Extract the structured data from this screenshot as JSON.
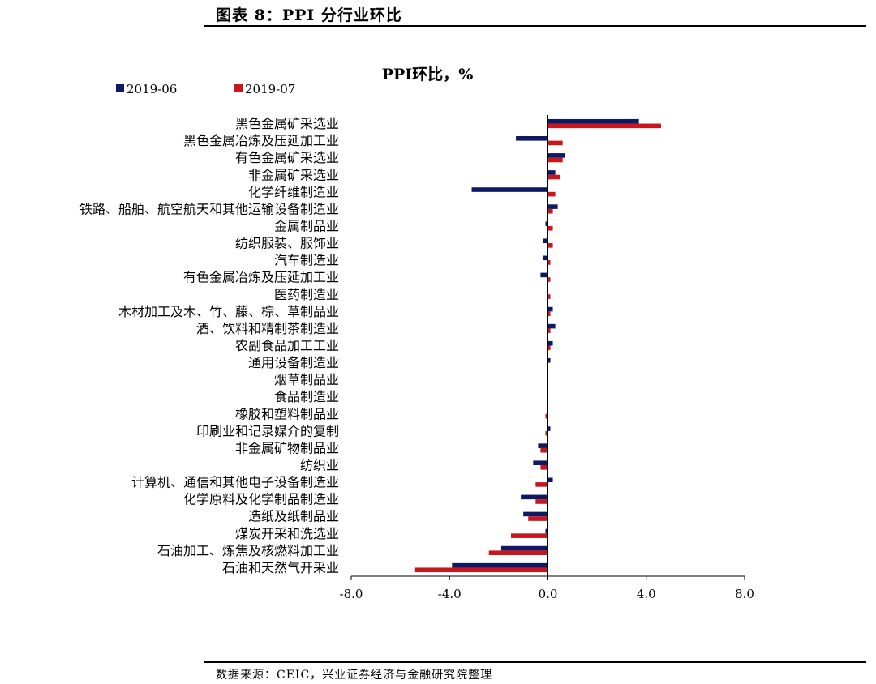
{
  "header": {
    "title": "图表 8：PPI 分行业环比"
  },
  "footer": {
    "source": "数据来源：CEIC，兴业证券经济与金融研究院整理"
  },
  "colors": {
    "series_2019_06": "#0d1a63",
    "series_2019_07": "#c8161d"
  },
  "chart_data": {
    "type": "bar",
    "orientation": "horizontal",
    "title": "PPI环比，%",
    "xlabel": "",
    "ylabel": "",
    "xlim": [
      -8.0,
      8.0
    ],
    "xticks": [
      "-8.0",
      "-4.0",
      "0.0",
      "4.0",
      "8.0"
    ],
    "xtick_values": [
      -8,
      -4,
      0,
      4,
      8
    ],
    "grid": false,
    "legend_position": "top-left",
    "categories": [
      "黑色金属矿采选业",
      "黑色金属冶炼及压延加工业",
      "有色金属矿采选业",
      "非金属矿采选业",
      "化学纤维制造业",
      "铁路、船舶、航空航天和其他运输设备制造业",
      "金属制品业",
      "纺织服装、服饰业",
      "汽车制造业",
      "有色金属冶炼及压延加工业",
      "医药制造业",
      "木材加工及木、竹、藤、棕、草制品业",
      "酒、饮料和精制茶制造业",
      "农副食品加工工业",
      "通用设备制造业",
      "烟草制品业",
      "食品制造业",
      "橡胶和塑料制品业",
      "印刷业和记录媒介的复制",
      "非金属矿物制品业",
      "纺织业",
      "计算机、通信和其他电子设备制造业",
      "化学原料及化学制品制造业",
      "造纸及纸制品业",
      "煤炭开采和洗选业",
      "石油加工、炼焦及核燃料加工业",
      "石油和天然气开采业"
    ],
    "series": [
      {
        "name": "2019-06",
        "values": [
          3.7,
          -1.3,
          0.7,
          0.3,
          -3.1,
          0.4,
          -0.1,
          -0.2,
          -0.2,
          -0.3,
          0.0,
          0.2,
          0.3,
          0.2,
          0.1,
          0.0,
          0.0,
          0.0,
          0.1,
          -0.4,
          -0.6,
          0.2,
          -1.1,
          -1.0,
          -0.1,
          -1.9,
          -3.9
        ]
      },
      {
        "name": "2019-07",
        "values": [
          4.6,
          0.6,
          0.6,
          0.5,
          0.3,
          0.2,
          0.2,
          0.2,
          0.1,
          0.1,
          0.1,
          0.1,
          0.1,
          0.1,
          0.0,
          0.0,
          0.0,
          -0.1,
          -0.1,
          -0.3,
          -0.3,
          -0.5,
          -0.5,
          -0.8,
          -1.5,
          -2.4,
          -5.4
        ]
      }
    ]
  }
}
